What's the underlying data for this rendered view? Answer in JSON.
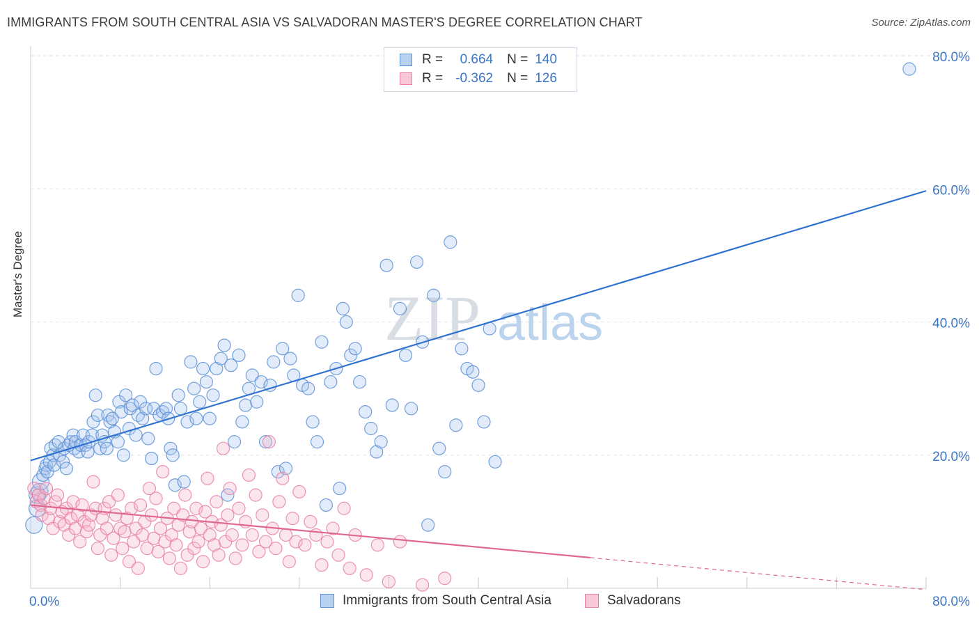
{
  "title": "IMMIGRANTS FROM SOUTH CENTRAL ASIA VS SALVADORAN MASTER'S DEGREE CORRELATION CHART",
  "source": "Source: ZipAtlas.com",
  "watermark": {
    "zip": "ZIP",
    "atlas": "atlas"
  },
  "legend": {
    "series": [
      {
        "r_label": "R =",
        "r_value": "0.664",
        "n_label": "N =",
        "n_value": "140"
      },
      {
        "r_label": "R =",
        "r_value": "-0.362",
        "n_label": "N =",
        "n_value": "126"
      }
    ]
  },
  "bottom_legend": [
    "Immigrants from South Central Asia",
    "Salvadorans"
  ],
  "colors": {
    "blue": "#5b8fd6",
    "blue_fill": "#a9c7ee",
    "blue_line": "#2f72cf",
    "pink": "#e87fa5",
    "pink_fill": "#f5b8cc",
    "pink_line": "#e0678f",
    "axis_text": "#3a74c4",
    "grid": "#dde3ea"
  },
  "chart_data": {
    "type": "scatter",
    "title": "IMMIGRANTS FROM SOUTH CENTRAL ASIA VS SALVADORAN MASTER'S DEGREE CORRELATION CHART",
    "xlabel": "",
    "ylabel": "Master's Degree",
    "xlim": [
      0,
      80
    ],
    "ylim": [
      0,
      80
    ],
    "x_tick_labels": [
      "0.0%",
      "80.0%"
    ],
    "y_tick_labels": [
      "20.0%",
      "40.0%",
      "60.0%",
      "80.0%"
    ],
    "y_ticks": [
      20,
      40,
      60,
      80
    ],
    "series": [
      {
        "name": "Immigrants from South Central Asia",
        "color": "blue",
        "trend": {
          "x": [
            0,
            80
          ],
          "y": [
            19.2,
            59.7
          ]
        },
        "points": [
          [
            0.3,
            9.5
          ],
          [
            0.6,
            12
          ],
          [
            0.6,
            14
          ],
          [
            0.8,
            14.5
          ],
          [
            0.9,
            16
          ],
          [
            1.1,
            17
          ],
          [
            1.3,
            18
          ],
          [
            1.4,
            18.5
          ],
          [
            1.5,
            17.5
          ],
          [
            1.7,
            19
          ],
          [
            1.8,
            21
          ],
          [
            2.0,
            20
          ],
          [
            2.1,
            18.5
          ],
          [
            2.2,
            21.5
          ],
          [
            2.5,
            22
          ],
          [
            2.6,
            20
          ],
          [
            2.9,
            19
          ],
          [
            3.0,
            21
          ],
          [
            3.2,
            18
          ],
          [
            3.4,
            21.5
          ],
          [
            3.6,
            22
          ],
          [
            3.8,
            23
          ],
          [
            3.9,
            21
          ],
          [
            4.0,
            22
          ],
          [
            4.3,
            20.5
          ],
          [
            4.5,
            21.5
          ],
          [
            4.7,
            23
          ],
          [
            4.9,
            21.5
          ],
          [
            5.1,
            20.5
          ],
          [
            5.2,
            22
          ],
          [
            5.5,
            23
          ],
          [
            5.6,
            25
          ],
          [
            5.8,
            29
          ],
          [
            6.0,
            26
          ],
          [
            6.2,
            21
          ],
          [
            6.4,
            23
          ],
          [
            6.6,
            22
          ],
          [
            6.8,
            21
          ],
          [
            6.9,
            26
          ],
          [
            7.1,
            25
          ],
          [
            7.3,
            25.5
          ],
          [
            7.5,
            23.5
          ],
          [
            7.8,
            22
          ],
          [
            7.9,
            28
          ],
          [
            8.1,
            26.5
          ],
          [
            8.3,
            20
          ],
          [
            8.5,
            29
          ],
          [
            8.8,
            24
          ],
          [
            8.9,
            27
          ],
          [
            9.1,
            27.5
          ],
          [
            9.4,
            23
          ],
          [
            9.6,
            26
          ],
          [
            9.8,
            28
          ],
          [
            10.0,
            25.5
          ],
          [
            10.3,
            27
          ],
          [
            10.5,
            22.5
          ],
          [
            10.8,
            19.5
          ],
          [
            11.0,
            27
          ],
          [
            11.2,
            33
          ],
          [
            11.5,
            26
          ],
          [
            11.8,
            26.5
          ],
          [
            12.1,
            27
          ],
          [
            12.3,
            25.5
          ],
          [
            12.5,
            21
          ],
          [
            12.7,
            20
          ],
          [
            12.9,
            15.5
          ],
          [
            13.2,
            29
          ],
          [
            13.4,
            27
          ],
          [
            13.7,
            16
          ],
          [
            14.0,
            25
          ],
          [
            14.3,
            34
          ],
          [
            14.6,
            30
          ],
          [
            14.8,
            25.5
          ],
          [
            15.1,
            28
          ],
          [
            15.4,
            33
          ],
          [
            15.7,
            31
          ],
          [
            16.0,
            25.5
          ],
          [
            16.3,
            29
          ],
          [
            16.6,
            33
          ],
          [
            17.0,
            34.5
          ],
          [
            17.3,
            36.5
          ],
          [
            17.6,
            14
          ],
          [
            17.9,
            33.5
          ],
          [
            18.2,
            22
          ],
          [
            18.6,
            35
          ],
          [
            18.9,
            25
          ],
          [
            19.2,
            27.5
          ],
          [
            19.5,
            30
          ],
          [
            19.8,
            32
          ],
          [
            20.2,
            28
          ],
          [
            20.6,
            31
          ],
          [
            21.0,
            22
          ],
          [
            21.4,
            30.5
          ],
          [
            21.7,
            34
          ],
          [
            22.1,
            17.5
          ],
          [
            22.5,
            36
          ],
          [
            22.8,
            18
          ],
          [
            23.2,
            34.5
          ],
          [
            23.5,
            32
          ],
          [
            23.9,
            44
          ],
          [
            24.3,
            30.5
          ],
          [
            24.8,
            30
          ],
          [
            25.2,
            25
          ],
          [
            25.6,
            22
          ],
          [
            26.0,
            37
          ],
          [
            26.4,
            12.5
          ],
          [
            26.8,
            31
          ],
          [
            27.3,
            33
          ],
          [
            27.6,
            15
          ],
          [
            27.9,
            42
          ],
          [
            28.2,
            40
          ],
          [
            28.6,
            35
          ],
          [
            29.0,
            36
          ],
          [
            29.4,
            31
          ],
          [
            29.9,
            26.5
          ],
          [
            30.4,
            24
          ],
          [
            30.9,
            20.5
          ],
          [
            31.3,
            22
          ],
          [
            31.8,
            48.5
          ],
          [
            32.3,
            27.5
          ],
          [
            33.0,
            42
          ],
          [
            33.5,
            35
          ],
          [
            34.0,
            27
          ],
          [
            34.5,
            49
          ],
          [
            35.0,
            37
          ],
          [
            35.5,
            9.5
          ],
          [
            36.0,
            44
          ],
          [
            36.5,
            21
          ],
          [
            37.0,
            17.5
          ],
          [
            37.5,
            52
          ],
          [
            38.0,
            24.5
          ],
          [
            38.5,
            36
          ],
          [
            39.0,
            33
          ],
          [
            39.5,
            32.5
          ],
          [
            40.0,
            30.5
          ],
          [
            40.5,
            25
          ],
          [
            41.0,
            39
          ],
          [
            41.5,
            19
          ],
          [
            78.5,
            78
          ]
        ]
      },
      {
        "name": "Salvadorans",
        "color": "pink",
        "trend": {
          "x": [
            0,
            50
          ],
          "y": [
            12.5,
            4.6
          ]
        },
        "trend_dashed": {
          "x": [
            50,
            80
          ],
          "y": [
            4.6,
            -0.2
          ]
        },
        "points": [
          [
            0.3,
            15
          ],
          [
            0.5,
            13
          ],
          [
            0.7,
            14
          ],
          [
            0.9,
            12.5
          ],
          [
            1.0,
            11
          ],
          [
            1.2,
            13.5
          ],
          [
            1.4,
            15
          ],
          [
            1.6,
            10.5
          ],
          [
            1.8,
            12
          ],
          [
            2.0,
            9
          ],
          [
            2.2,
            13
          ],
          [
            2.4,
            14
          ],
          [
            2.6,
            10
          ],
          [
            2.8,
            11.5
          ],
          [
            3.0,
            9.5
          ],
          [
            3.2,
            12
          ],
          [
            3.4,
            8
          ],
          [
            3.6,
            10.5
          ],
          [
            3.8,
            13
          ],
          [
            4.0,
            9
          ],
          [
            4.2,
            11
          ],
          [
            4.4,
            7
          ],
          [
            4.6,
            12.5
          ],
          [
            4.8,
            10
          ],
          [
            5.0,
            8.5
          ],
          [
            5.2,
            9.5
          ],
          [
            5.4,
            11
          ],
          [
            5.6,
            16
          ],
          [
            5.8,
            12
          ],
          [
            6.0,
            6
          ],
          [
            6.2,
            8
          ],
          [
            6.4,
            10.5
          ],
          [
            6.6,
            12
          ],
          [
            6.8,
            9
          ],
          [
            7.0,
            13
          ],
          [
            7.2,
            5
          ],
          [
            7.4,
            7.5
          ],
          [
            7.6,
            11
          ],
          [
            7.8,
            14
          ],
          [
            8.0,
            9
          ],
          [
            8.2,
            6
          ],
          [
            8.4,
            8.5
          ],
          [
            8.6,
            10.5
          ],
          [
            8.8,
            4
          ],
          [
            9.0,
            12
          ],
          [
            9.2,
            7
          ],
          [
            9.4,
            9
          ],
          [
            9.6,
            3
          ],
          [
            9.8,
            12.5
          ],
          [
            10.0,
            8
          ],
          [
            10.2,
            10
          ],
          [
            10.4,
            6
          ],
          [
            10.6,
            15
          ],
          [
            10.8,
            11
          ],
          [
            11.0,
            7.5
          ],
          [
            11.2,
            13.5
          ],
          [
            11.4,
            5.5
          ],
          [
            11.6,
            9
          ],
          [
            11.8,
            17.5
          ],
          [
            12.0,
            7
          ],
          [
            12.2,
            10.5
          ],
          [
            12.4,
            4.5
          ],
          [
            12.6,
            8
          ],
          [
            12.8,
            12
          ],
          [
            13.0,
            6.5
          ],
          [
            13.2,
            9.5
          ],
          [
            13.4,
            3
          ],
          [
            13.6,
            11
          ],
          [
            13.8,
            14
          ],
          [
            14.0,
            5
          ],
          [
            14.2,
            8.5
          ],
          [
            14.4,
            10
          ],
          [
            14.6,
            6
          ],
          [
            14.8,
            12
          ],
          [
            15.0,
            7
          ],
          [
            15.2,
            9
          ],
          [
            15.4,
            4
          ],
          [
            15.6,
            11.5
          ],
          [
            15.8,
            16.5
          ],
          [
            16.0,
            8
          ],
          [
            16.2,
            10
          ],
          [
            16.4,
            6.5
          ],
          [
            16.6,
            13
          ],
          [
            16.8,
            5
          ],
          [
            17.0,
            9.5
          ],
          [
            17.2,
            21
          ],
          [
            17.4,
            7
          ],
          [
            17.6,
            11
          ],
          [
            17.8,
            15
          ],
          [
            18.0,
            8
          ],
          [
            18.3,
            4.5
          ],
          [
            18.6,
            12
          ],
          [
            18.9,
            6.5
          ],
          [
            19.2,
            10
          ],
          [
            19.5,
            17
          ],
          [
            19.8,
            8
          ],
          [
            20.1,
            14
          ],
          [
            20.4,
            5.5
          ],
          [
            20.7,
            11
          ],
          [
            21.0,
            7
          ],
          [
            21.3,
            22
          ],
          [
            21.6,
            9
          ],
          [
            21.9,
            6
          ],
          [
            22.2,
            13
          ],
          [
            22.5,
            16.5
          ],
          [
            22.8,
            8
          ],
          [
            23.1,
            4
          ],
          [
            23.4,
            10.5
          ],
          [
            23.7,
            7
          ],
          [
            24.0,
            14.5
          ],
          [
            24.5,
            6.5
          ],
          [
            25.0,
            10
          ],
          [
            25.5,
            8
          ],
          [
            26.0,
            3.5
          ],
          [
            26.5,
            7
          ],
          [
            27.0,
            9
          ],
          [
            27.5,
            5
          ],
          [
            28.0,
            12
          ],
          [
            28.5,
            3
          ],
          [
            29.0,
            8
          ],
          [
            30.0,
            2
          ],
          [
            31.0,
            6.5
          ],
          [
            32.0,
            1
          ],
          [
            33.0,
            7
          ],
          [
            35.0,
            0.5
          ],
          [
            37.0,
            1.5
          ]
        ]
      }
    ]
  }
}
